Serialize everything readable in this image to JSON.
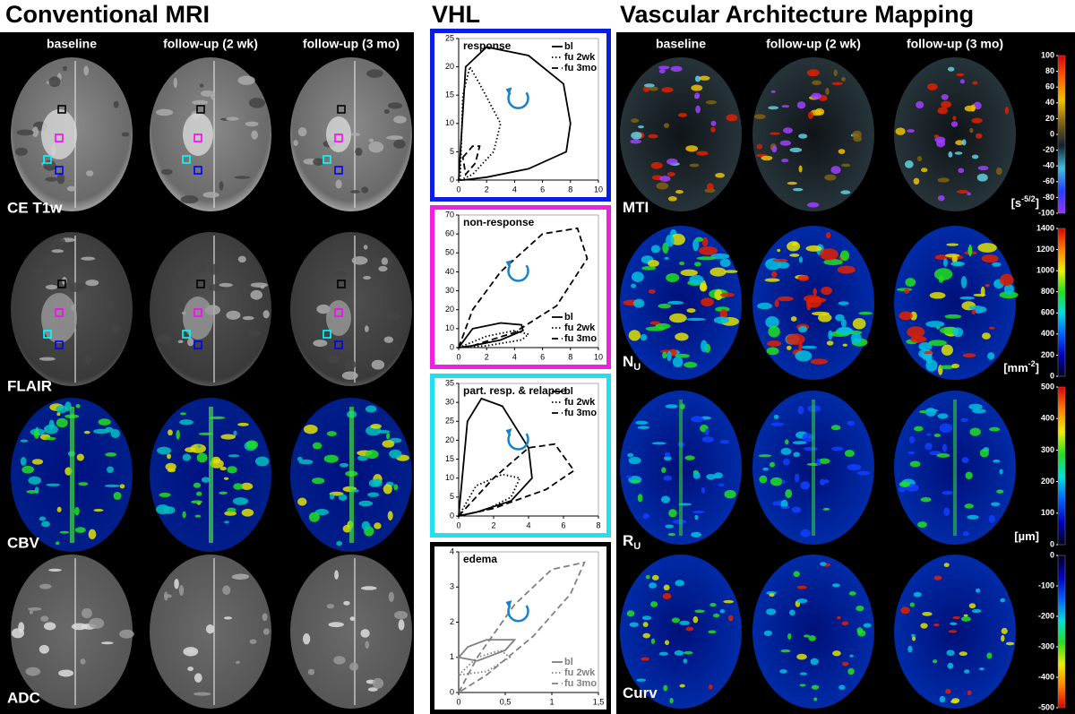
{
  "headers": {
    "conventional": "Conventional MRI",
    "vhl": "VHL",
    "vam": "Vascular Architecture Mapping"
  },
  "conventional": {
    "columns": [
      "baseline",
      "follow-up (2 wk)",
      "follow-up (3 mo)"
    ],
    "rows": [
      "CE T1w",
      "FLAIR",
      "CBV",
      "ADC"
    ]
  },
  "vam": {
    "columns": [
      "baseline",
      "follow-up (2 wk)",
      "follow-up (3 mo)"
    ],
    "rows": [
      {
        "label": {
          "main": "MTI"
        },
        "unit": {
          "main": "[s",
          "sup": "-5/2",
          "end": "]"
        },
        "colorbar": {
          "range": [
            -100,
            100
          ],
          "ticks": [
            100,
            80,
            60,
            40,
            20,
            0,
            -20,
            -40,
            -60,
            -80,
            -100
          ],
          "colors": [
            "#9b30ff",
            "#2040ff",
            "#40c0e0",
            "#102030",
            "#806010",
            "#f0c000",
            "#ff6000",
            "#e00000"
          ]
        }
      },
      {
        "label": {
          "main": "N",
          "sub": "U"
        },
        "unit": {
          "main": "[mm",
          "sup": "-2",
          "end": "]"
        },
        "colorbar": {
          "range": [
            0,
            1400
          ],
          "ticks": [
            1400,
            1200,
            1000,
            800,
            600,
            400,
            200,
            0
          ],
          "colors": [
            "#000020",
            "#0000c0",
            "#0060ff",
            "#00e0e0",
            "#20e020",
            "#f0f000",
            "#ff8000",
            "#e00000"
          ]
        }
      },
      {
        "label": {
          "main": "R",
          "sub": "U"
        },
        "unit": {
          "main": "[µm]"
        },
        "colorbar": {
          "range": [
            0,
            500
          ],
          "ticks": [
            500,
            400,
            300,
            200,
            100,
            0
          ],
          "colors": [
            "#000020",
            "#0000c0",
            "#0060ff",
            "#00e0e0",
            "#20e020",
            "#f0f000",
            "#ff8000",
            "#e00000"
          ]
        }
      },
      {
        "label": {
          "main": "Curv"
        },
        "colorbar": {
          "range": [
            -500,
            0
          ],
          "ticks": [
            0,
            -100,
            -200,
            -300,
            -400,
            -500
          ],
          "colors": [
            "#e00000",
            "#ff8000",
            "#f0f000",
            "#20e020",
            "#00e0e0",
            "#0060ff",
            "#0000c0",
            "#000020"
          ]
        }
      }
    ]
  },
  "vhl": {
    "plots": [
      {
        "title": "response",
        "frame_color": "#0a1ee0",
        "legend": "upper right",
        "xlim": [
          0,
          10
        ],
        "ylim": [
          0,
          25
        ],
        "xticks": [
          0,
          2,
          4,
          6,
          8,
          10
        ],
        "yticks": [
          0,
          5,
          10,
          15,
          20,
          25
        ],
        "series": [
          {
            "name": "bl",
            "color": "#000000",
            "dash": "solid",
            "x": [
              0,
              0.5,
              2,
              5,
              7.5,
              8,
              7.7,
              5,
              2,
              0.3
            ],
            "y": [
              0,
              20,
              23.5,
              22,
              17,
              10,
              5,
              2,
              0.5,
              0
            ]
          },
          {
            "name": "fu 2wk",
            "color": "#000000",
            "dash": "dotted",
            "x": [
              0.1,
              0.3,
              0.8,
              1.5,
              3,
              2.5,
              1
            ],
            "y": [
              0,
              15,
              20,
              17,
              10,
              5,
              1
            ]
          },
          {
            "name": "fu 3mo",
            "color": "#000000",
            "dash": "dashed",
            "x": [
              0.3,
              1,
              1.5,
              1.2,
              0.5
            ],
            "y": [
              4,
              6,
              6,
              3,
              1
            ]
          }
        ]
      },
      {
        "title": "non-response",
        "frame_color": "#f020e0",
        "legend": "lower right",
        "xlim": [
          0,
          10
        ],
        "ylim": [
          0,
          70
        ],
        "xticks": [
          0,
          2,
          4,
          6,
          8,
          10
        ],
        "yticks": [
          0,
          10,
          20,
          30,
          40,
          50,
          60,
          70
        ],
        "series": [
          {
            "name": "bl",
            "color": "#000000",
            "dash": "solid",
            "x": [
              0,
              1,
              3,
              4.5,
              4.6,
              3,
              1
            ],
            "y": [
              0,
              10,
              13,
              12,
              9,
              4,
              1
            ]
          },
          {
            "name": "fu 2wk",
            "color": "#000000",
            "dash": "dotted",
            "x": [
              0,
              2,
              4,
              5,
              4.5,
              2
            ],
            "y": [
              0,
              6,
              9,
              7,
              4,
              1
            ]
          },
          {
            "name": "fu 3mo",
            "color": "#000000",
            "dash": "dashed",
            "x": [
              0,
              1,
              3,
              6,
              8.5,
              9.2,
              7,
              4,
              1
            ],
            "y": [
              0,
              20,
              40,
              60,
              63,
              47,
              22,
              8,
              1
            ]
          }
        ]
      },
      {
        "title": "part. resp. & relapse",
        "frame_color": "#20e0f0",
        "legend": "upper right",
        "xlim": [
          0,
          8
        ],
        "ylim": [
          0,
          35
        ],
        "xticks": [
          0,
          2,
          4,
          6,
          8
        ],
        "yticks": [
          0,
          5,
          10,
          15,
          20,
          25,
          30,
          35
        ],
        "series": [
          {
            "name": "bl",
            "color": "#000000",
            "dash": "solid",
            "x": [
              0,
              0.5,
              1.3,
              2.5,
              4,
              4.2,
              3,
              1
            ],
            "y": [
              0,
              25,
              31,
              29,
              18,
              10,
              4,
              1
            ]
          },
          {
            "name": "fu 2wk",
            "color": "#000000",
            "dash": "dotted",
            "x": [
              0,
              1,
              2.5,
              3.5,
              3,
              1.5
            ],
            "y": [
              0,
              8,
              11,
              10,
              5,
              1.5
            ]
          },
          {
            "name": "fu 3mo",
            "color": "#000000",
            "dash": "dashed",
            "x": [
              0,
              2,
              4,
              5.5,
              6.6,
              5,
              2
            ],
            "y": [
              0,
              10,
              18,
              19,
              12,
              7,
              2
            ]
          }
        ]
      },
      {
        "title": "edema",
        "frame_color": "#000000",
        "legend": "lower right",
        "xlim": [
          0,
          1.5
        ],
        "ylim": [
          0,
          4
        ],
        "xticks": [
          0,
          {
            "value": 0.5,
            "label": "0,5"
          },
          1,
          {
            "value": 1.5,
            "label": "1,5"
          }
        ],
        "yticks": [
          0,
          1,
          2,
          3,
          4
        ],
        "series": [
          {
            "name": "bl",
            "color": "#808080",
            "dash": "solid",
            "x": [
              0,
              0.1,
              0.3,
              0.6,
              0.5,
              0.2
            ],
            "y": [
              1,
              1.3,
              1.5,
              1.5,
              1.2,
              0.9
            ]
          },
          {
            "name": "fu 2wk",
            "color": "#808080",
            "dash": "dotted",
            "x": [
              0,
              0.2,
              0.45,
              0.55,
              0.3
            ],
            "y": [
              0.5,
              1,
              1.2,
              1,
              0.6
            ]
          },
          {
            "name": "fu 3mo",
            "color": "#808080",
            "dash": "dashed",
            "x": [
              0,
              0.2,
              0.6,
              1,
              1.35,
              1.2,
              0.8,
              0.3
            ],
            "y": [
              0,
              1,
              2.5,
              3.5,
              3.7,
              2.8,
              1.6,
              0.5
            ]
          }
        ]
      }
    ]
  }
}
